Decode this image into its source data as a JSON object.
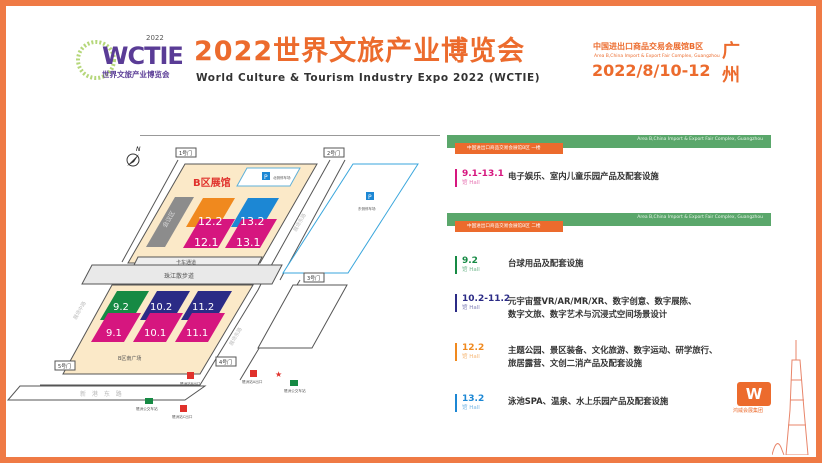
{
  "header": {
    "title_cn": "2022世界文旅产业博览会",
    "title_en": "World Culture & Tourism Industry Expo 2022 (WCTIE)",
    "logo": {
      "text": "WCTIE",
      "year": "2022",
      "cn": "世界文旅产业博览会"
    },
    "venue_cn": "中国进出口商品交易会展馆B区",
    "venue_en": "Area B,China Import & Export Fair Complex, Guangzhou",
    "date": "2022/8/10-12",
    "city": "广州"
  },
  "map": {
    "zone_label": "B区展馆",
    "gates": [
      "1号门",
      "2号门",
      "3号门",
      "4号门",
      "5号门"
    ],
    "halls_upper": [
      {
        "name": "12.2",
        "color": "#f0891e"
      },
      {
        "name": "13.2",
        "color": "#1c87d4"
      },
      {
        "name": "12.1",
        "color": "#d6167f"
      },
      {
        "name": "13.1",
        "color": "#d6167f"
      }
    ],
    "halls_lower": [
      {
        "name": "9.2",
        "color": "#168a44"
      },
      {
        "name": "10.2",
        "color": "#2b2b86"
      },
      {
        "name": "11.2",
        "color": "#2b2b86"
      },
      {
        "name": "9.1",
        "color": "#d6167f"
      },
      {
        "name": "10.1",
        "color": "#d6167f"
      },
      {
        "name": "11.1",
        "color": "#d6167f"
      }
    ],
    "meeting": "会议区",
    "north_parking": "北侧停车场",
    "east_parking": "东侧停车场",
    "truck_lane": "卡车通道",
    "river_walk": "珠江散步道",
    "mid_road": "展场中路",
    "east_road": "展场东路",
    "plaza": "B区南广场",
    "xingang_road": "新 港 东 路",
    "metro_b": "琶洲站B出口",
    "metro_a": "琶洲站A出口",
    "metro_c": "琶洲站C出口",
    "bus1": "琶洲公交车站",
    "bus2": "琶洲公交车站",
    "compass": "N"
  },
  "panel": {
    "bar_en": "Area B,China Import & Export Fair Complex, Guangzhou",
    "floor1": "中国进出口商品交易会展馆B区 一楼",
    "floor2": "中国进出口商品交易会展馆B区 二楼",
    "hall_label": "馆 Hall",
    "entries": [
      {
        "num": "9.1-13.1",
        "color": "#d6167f",
        "desc1": "电子娱乐、室内儿童乐园产品及配套设施",
        "desc2": ""
      },
      {
        "num": "9.2",
        "color": "#168a44",
        "desc1": "台球用品及配套设施",
        "desc2": ""
      },
      {
        "num": "10.2-11.2",
        "color": "#2b2b86",
        "desc1": "元宇宙暨VR/AR/MR/XR、数字创意、数字展陈、",
        "desc2": "数字文旅、数字艺术与沉浸式空间场景设计"
      },
      {
        "num": "12.2",
        "color": "#f0891e",
        "desc1": "主题公园、景区装备、文化旅游、数字运动、研学旅行、",
        "desc2": "旅居露营、文创二消产品及配套设施"
      },
      {
        "num": "13.2",
        "color": "#1c87d4",
        "desc1": "泳池SPA、温泉、水上乐园产品及配套设施",
        "desc2": ""
      }
    ]
  },
  "footer_logo": "鸿威会展集团"
}
